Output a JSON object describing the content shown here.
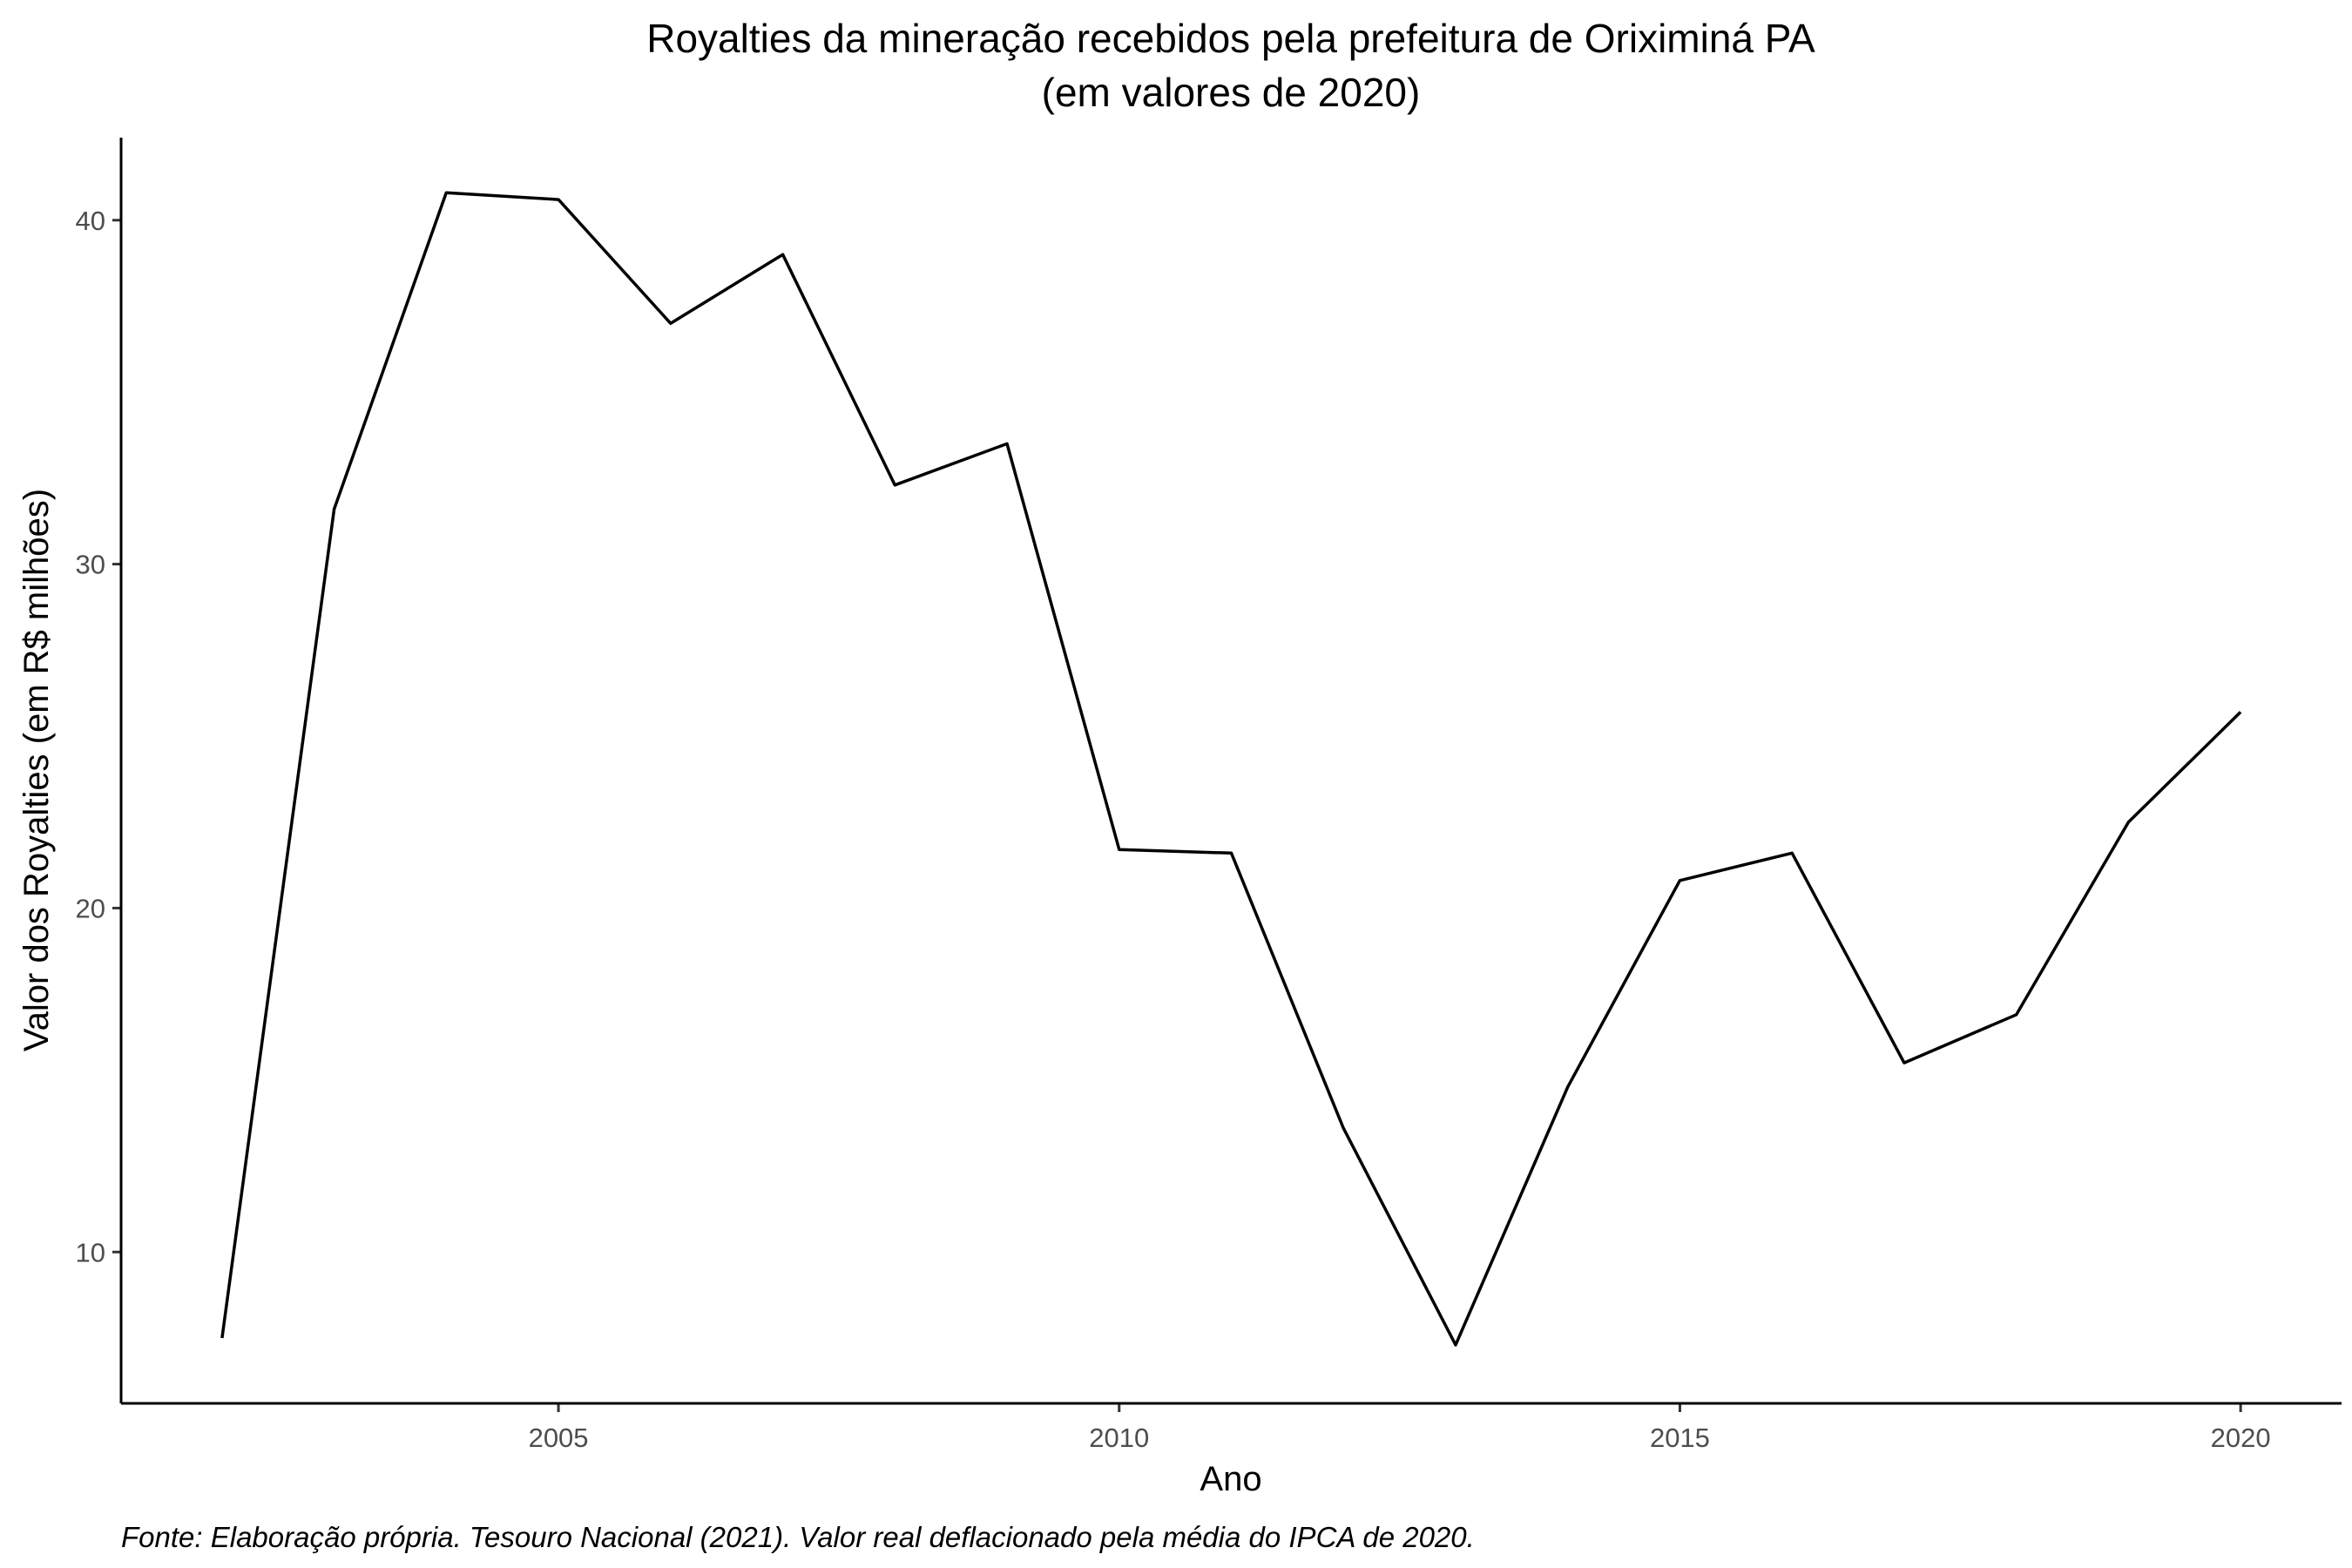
{
  "chart_data": {
    "type": "line",
    "title_line1": "Royalties da mineração recebidos pela prefeitura de Oriximiná PA",
    "title_line2": "(em valores de 2020)",
    "xlabel": "Ano",
    "ylabel": "Valor dos Royalties (em R$ milhões)",
    "caption": "Fonte: Elaboração própria. Tesouro Nacional (2021). Valor real deflacionado pela média do IPCA de 2020.",
    "x_ticks": [
      2005,
      2010,
      2015,
      2020
    ],
    "y_ticks": [
      10,
      20,
      30,
      40
    ],
    "xlim": [
      2001.1,
      2020.9
    ],
    "ylim": [
      5.6,
      42.4
    ],
    "grid": false,
    "line_color": "#000000",
    "series": [
      {
        "x": [
          2002,
          2003,
          2004,
          2005,
          2006,
          2007,
          2008,
          2009,
          2010,
          2011,
          2012,
          2013,
          2014,
          2015,
          2016,
          2017,
          2018,
          2019,
          2020
        ],
        "y": [
          7.5,
          31.6,
          40.8,
          40.6,
          37.0,
          39.0,
          32.3,
          33.5,
          21.7,
          21.6,
          13.6,
          7.3,
          14.8,
          20.8,
          21.6,
          15.5,
          16.9,
          22.5,
          25.7
        ]
      }
    ]
  }
}
